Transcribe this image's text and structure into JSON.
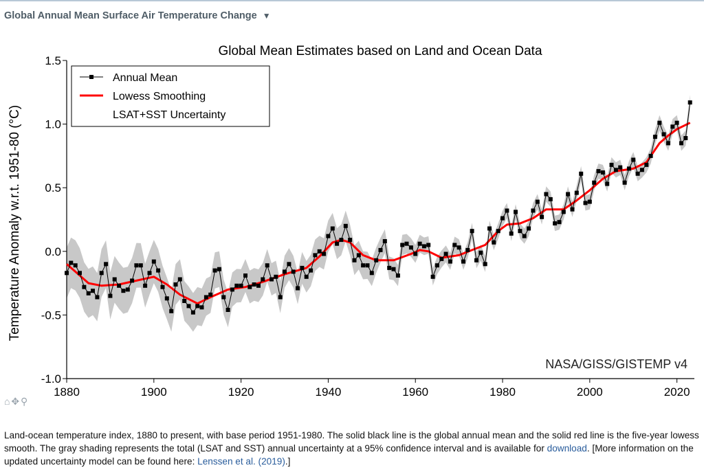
{
  "header": {
    "title": "Global Annual Mean Surface Air Temperature Change",
    "caret": "▼"
  },
  "colors": {
    "series": "#000000",
    "smooth": "#ff0000",
    "band": "#c8c8c8",
    "header": "#4f5d67",
    "link": "#2a5d9c"
  },
  "toolbar": {
    "home_icon": "home-icon",
    "pan_icon": "pan-icon",
    "zoom_icon": "zoom-icon"
  },
  "chart_data": {
    "type": "line",
    "title": "Global Mean Estimates based on Land and Ocean Data",
    "xlabel": "",
    "ylabel": "Temperature Anomaly w.r.t. 1951-80 (°C)",
    "xlim": [
      1880,
      2024
    ],
    "ylim": [
      -1.0,
      1.5
    ],
    "xticks": [
      "1880",
      "1900",
      "1920",
      "1940",
      "1960",
      "1980",
      "2000",
      "2020"
    ],
    "yticks": [
      "-1.0",
      "-0.5",
      "0.0",
      "0.5",
      "1.0",
      "1.5"
    ],
    "watermark": "NASA/GISS/GISTEMP v4",
    "legend": {
      "position": "top-left",
      "entries": [
        "Annual Mean",
        "Lowess Smoothing",
        "LSAT+SST Uncertainty"
      ]
    },
    "years_start": 1880,
    "annual_mean": [
      -0.17,
      -0.09,
      -0.11,
      -0.17,
      -0.28,
      -0.33,
      -0.31,
      -0.36,
      -0.17,
      -0.1,
      -0.35,
      -0.22,
      -0.27,
      -0.31,
      -0.3,
      -0.23,
      -0.11,
      -0.11,
      -0.27,
      -0.17,
      -0.08,
      -0.15,
      -0.28,
      -0.37,
      -0.47,
      -0.26,
      -0.22,
      -0.39,
      -0.43,
      -0.48,
      -0.43,
      -0.44,
      -0.36,
      -0.34,
      -0.15,
      -0.14,
      -0.36,
      -0.46,
      -0.3,
      -0.27,
      -0.27,
      -0.19,
      -0.28,
      -0.26,
      -0.27,
      -0.22,
      -0.11,
      -0.22,
      -0.2,
      -0.36,
      -0.16,
      -0.1,
      -0.16,
      -0.29,
      -0.13,
      -0.2,
      -0.15,
      -0.03,
      -0.0,
      -0.02,
      0.12,
      0.18,
      0.06,
      0.09,
      0.2,
      0.09,
      -0.07,
      -0.03,
      -0.11,
      -0.11,
      -0.17,
      -0.07,
      0.01,
      0.08,
      -0.13,
      -0.14,
      -0.19,
      0.05,
      0.06,
      0.03,
      -0.02,
      0.06,
      0.04,
      0.05,
      -0.2,
      -0.11,
      -0.06,
      -0.02,
      -0.08,
      0.05,
      0.03,
      -0.08,
      0.01,
      0.16,
      -0.07,
      -0.01,
      -0.1,
      0.18,
      0.07,
      0.16,
      0.26,
      0.32,
      0.14,
      0.31,
      0.16,
      0.12,
      0.18,
      0.32,
      0.39,
      0.27,
      0.45,
      0.41,
      0.22,
      0.23,
      0.31,
      0.45,
      0.33,
      0.46,
      0.61,
      0.38,
      0.39,
      0.54,
      0.63,
      0.62,
      0.53,
      0.68,
      0.64,
      0.66,
      0.54,
      0.65,
      0.72,
      0.61,
      0.64,
      0.68,
      0.75,
      0.9,
      1.01,
      0.92,
      0.85,
      0.98,
      1.01,
      0.85,
      0.89,
      1.17
    ],
    "lowess": [
      [
        1880,
        -0.1
      ],
      [
        1882,
        -0.16
      ],
      [
        1885,
        -0.25
      ],
      [
        1888,
        -0.27
      ],
      [
        1892,
        -0.26
      ],
      [
        1896,
        -0.23
      ],
      [
        1900,
        -0.2
      ],
      [
        1903,
        -0.26
      ],
      [
        1906,
        -0.34
      ],
      [
        1910,
        -0.41
      ],
      [
        1913,
        -0.36
      ],
      [
        1917,
        -0.3
      ],
      [
        1921,
        -0.28
      ],
      [
        1925,
        -0.24
      ],
      [
        1930,
        -0.18
      ],
      [
        1935,
        -0.13
      ],
      [
        1938,
        -0.04
      ],
      [
        1941,
        0.07
      ],
      [
        1943,
        0.09
      ],
      [
        1945,
        0.07
      ],
      [
        1948,
        -0.03
      ],
      [
        1951,
        -0.07
      ],
      [
        1955,
        -0.07
      ],
      [
        1959,
        -0.02
      ],
      [
        1961,
        0.01
      ],
      [
        1963,
        0.0
      ],
      [
        1966,
        -0.05
      ],
      [
        1970,
        -0.03
      ],
      [
        1973,
        0.01
      ],
      [
        1976,
        0.05
      ],
      [
        1979,
        0.16
      ],
      [
        1981,
        0.21
      ],
      [
        1984,
        0.22
      ],
      [
        1987,
        0.26
      ],
      [
        1990,
        0.33
      ],
      [
        1994,
        0.33
      ],
      [
        1997,
        0.4
      ],
      [
        2000,
        0.48
      ],
      [
        2003,
        0.57
      ],
      [
        2006,
        0.63
      ],
      [
        2010,
        0.65
      ],
      [
        2013,
        0.7
      ],
      [
        2016,
        0.85
      ],
      [
        2018,
        0.91
      ],
      [
        2020,
        0.96
      ],
      [
        2023,
        1.01
      ]
    ],
    "uncertainty_halfwidth": [
      [
        1880,
        0.2
      ],
      [
        1900,
        0.17
      ],
      [
        1920,
        0.13
      ],
      [
        1945,
        0.12
      ],
      [
        1960,
        0.07
      ],
      [
        1980,
        0.06
      ],
      [
        2023,
        0.06
      ]
    ]
  },
  "caption": {
    "p1": "Land-ocean temperature index, 1880 to present, with base period 1951-1980. The solid black line is the global annual mean and the solid red line is the five-year lowess smooth. The gray shading represents the total (LSAT and SST) annual uncertainty at a 95% confidence interval and is available for ",
    "link1": "download",
    "p2": ". [More information on the updated uncertainty model can be found here: ",
    "link2": "Lenssen et al. (2019)",
    "p3": ".]"
  }
}
